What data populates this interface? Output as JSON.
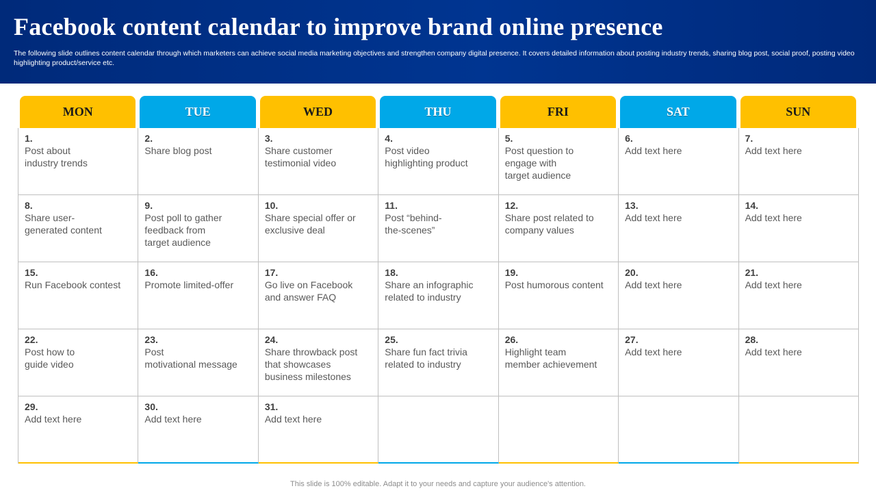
{
  "header": {
    "title": "Facebook content calendar to improve brand online presence",
    "subtitle": "The following slide outlines content calendar through which marketers can achieve social media marketing objectives and strengthen company digital presence. It covers detailed information about posting industry trends, sharing blog post, social proof, posting video highlighting product/service etc."
  },
  "days": [
    "MON",
    "TUE",
    "WED",
    "THU",
    "FRI",
    "SAT",
    "SUN"
  ],
  "colors": {
    "yellow": "#ffc000",
    "blue": "#00a8e8",
    "header_bg": "#003591"
  },
  "calendar": [
    [
      {
        "num": "1.",
        "text": "Post about\nindustry trends"
      },
      {
        "num": "2.",
        "text": "Share blog post"
      },
      {
        "num": "3.",
        "text": "Share customer\ntestimonial video"
      },
      {
        "num": "4.",
        "text": "Post video\nhighlighting product"
      },
      {
        "num": "5.",
        "text": "Post question to\nengage with\ntarget audience"
      },
      {
        "num": "6.",
        "text": "Add text here"
      },
      {
        "num": "7.",
        "text": "Add text here"
      }
    ],
    [
      {
        "num": "8.",
        "text": "Share user-\ngenerated content"
      },
      {
        "num": "9.",
        "text": "Post poll to gather\nfeedback from\ntarget audience"
      },
      {
        "num": "10.",
        "text": "Share special offer or\nexclusive deal"
      },
      {
        "num": "11.",
        "text": "Post “behind-\nthe-scenes”"
      },
      {
        "num": "12.",
        "text": "Share post related to\ncompany values"
      },
      {
        "num": "13.",
        "text": "Add text here"
      },
      {
        "num": "14.",
        "text": "Add text here"
      }
    ],
    [
      {
        "num": "15.",
        "text": "Run Facebook contest"
      },
      {
        "num": "16.",
        "text": "Promote limited-offer"
      },
      {
        "num": "17.",
        "text": "Go live on Facebook\nand answer FAQ"
      },
      {
        "num": "18.",
        "text": "Share an infographic\nrelated to industry"
      },
      {
        "num": "19.",
        "text": "Post humorous content"
      },
      {
        "num": "20.",
        "text": "Add text here"
      },
      {
        "num": "21.",
        "text": "Add text here"
      }
    ],
    [
      {
        "num": "22.",
        "text": "Post how to\nguide video"
      },
      {
        "num": "23.",
        "text": "Post\nmotivational message"
      },
      {
        "num": "24.",
        "text": "Share throwback post\nthat showcases\nbusiness milestones"
      },
      {
        "num": "25.",
        "text": "Share fun fact trivia\nrelated to industry"
      },
      {
        "num": "26.",
        "text": "Highlight team\nmember achievement"
      },
      {
        "num": "27.",
        "text": "Add text here"
      },
      {
        "num": "28.",
        "text": "Add text here"
      }
    ],
    [
      {
        "num": "29.",
        "text": "Add text here"
      },
      {
        "num": "30.",
        "text": "Add text here"
      },
      {
        "num": "31.",
        "text": "Add text here"
      },
      {
        "num": "",
        "text": ""
      },
      {
        "num": "",
        "text": ""
      },
      {
        "num": "",
        "text": ""
      },
      {
        "num": "",
        "text": ""
      }
    ]
  ],
  "footer": "This slide is 100% editable. Adapt it to your needs and capture your audience's attention."
}
